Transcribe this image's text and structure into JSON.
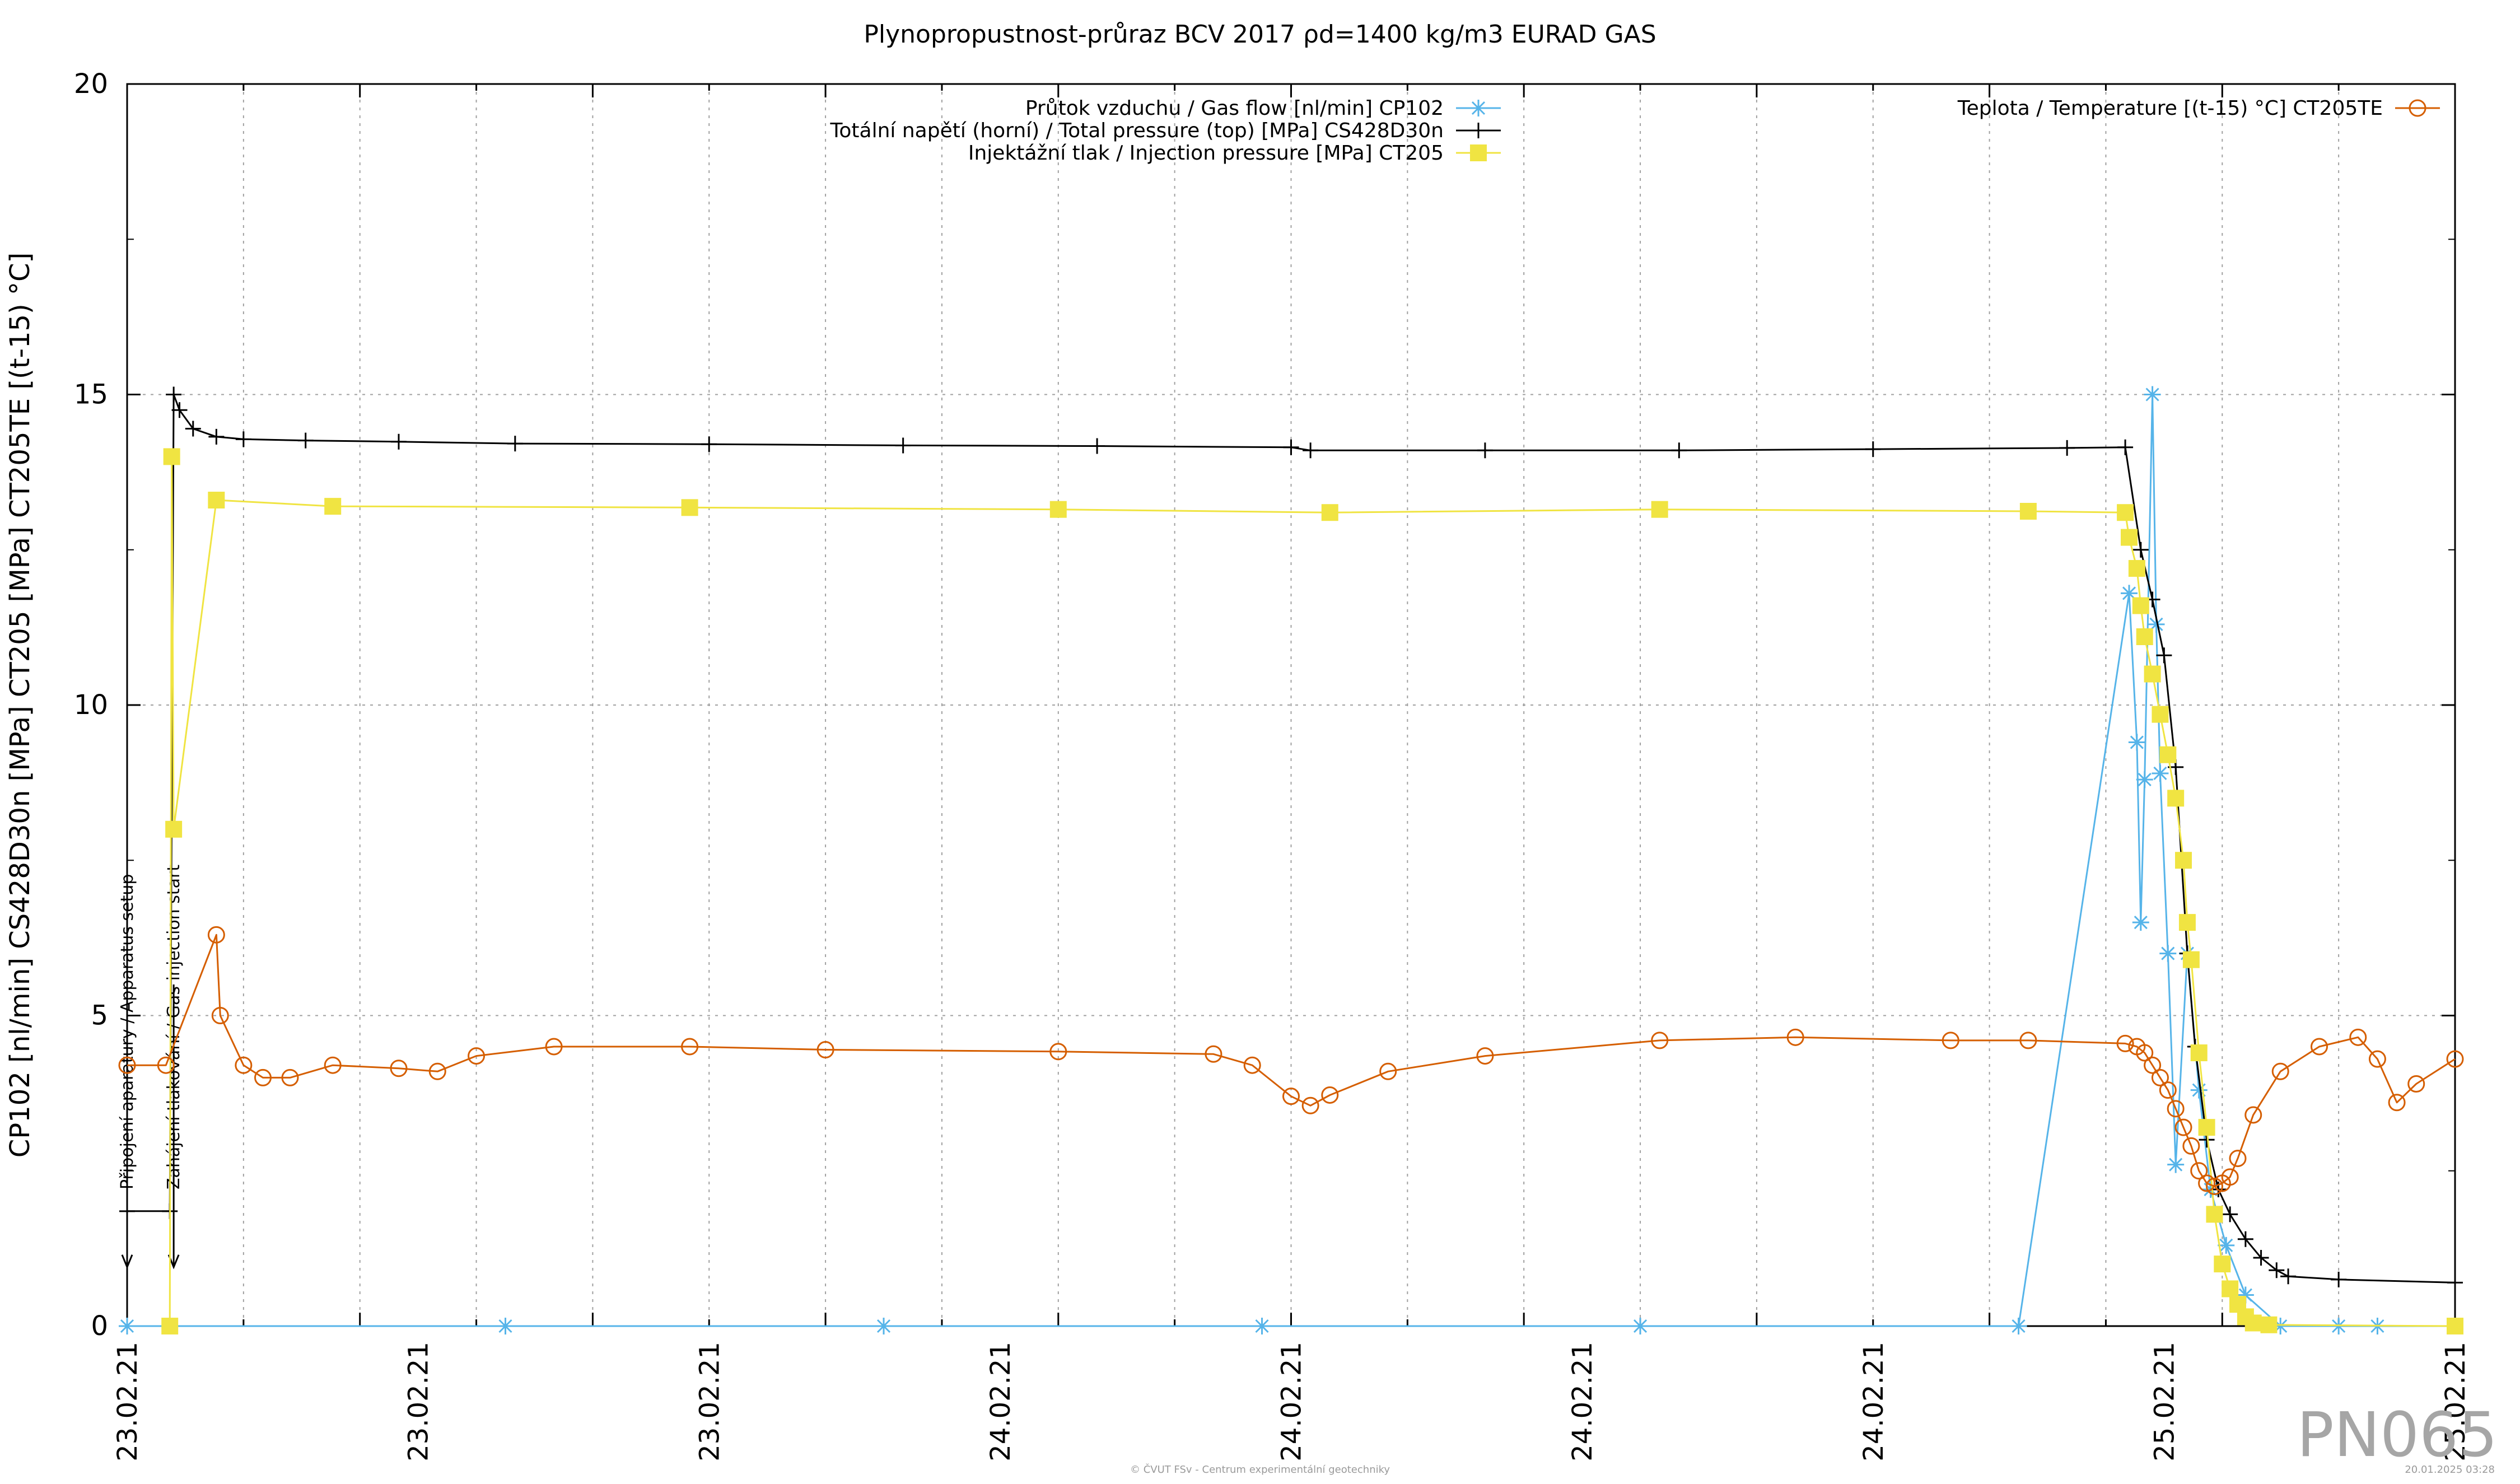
{
  "title": "Plynopropustnost-průraz BCV 2017 ρd=1400 kg/m3 EURAD GAS",
  "brand": "PN065",
  "footer_left": "© ČVUT FSv - Centrum experimentální geotechniky",
  "footer_right": "20.01.2025 03:28",
  "chart_data": {
    "type": "line",
    "title": "Plynopropustnost-průraz BCV 2017 ρd=1400 kg/m3 EURAD GAS",
    "ylabel": "CP102 [nl/min] CS428D30n [MPa] CT205 [MPa] CT205TE [(t-15) °C]",
    "xlabel": "",
    "ylim": [
      0,
      20
    ],
    "yticks": [
      0,
      5,
      10,
      15,
      20
    ],
    "x_ticklabels": [
      "23.02.21",
      "23.02.21",
      "23.02.21",
      "24.02.21",
      "24.02.21",
      "24.02.21",
      "24.02.21",
      "25.02.21",
      "25.02.21"
    ],
    "xlim_hours": [
      0,
      60
    ],
    "grid": true,
    "legend_position": "top",
    "annotations": [
      {
        "text": "Připojení aparatury / Apparatus setup",
        "x": 0.0
      },
      {
        "text": "Zahájení tlakování / Gas injection start",
        "x": 1.2
      }
    ],
    "series": [
      {
        "name": "Průtok vzduchu / Gas flow [nl/min] CP102",
        "color": "#56b4e9",
        "marker": "asterisk",
        "x": [
          0.0,
          9.75,
          19.5,
          29.25,
          39.0,
          48.75,
          51.6,
          51.8,
          51.9,
          52.0,
          52.2,
          52.3,
          52.4,
          52.6,
          52.8,
          53.1,
          53.4,
          53.7,
          54.1,
          54.6,
          55.5,
          57.0,
          58.0,
          60.0
        ],
        "y": [
          0,
          0,
          0,
          0,
          0,
          0,
          11.8,
          9.4,
          6.5,
          8.8,
          15.0,
          11.3,
          8.9,
          6.0,
          2.6,
          6.0,
          3.8,
          2.2,
          1.3,
          0.5,
          0,
          0,
          0,
          0
        ]
      },
      {
        "name": "Totální napětí (horní) / Total pressure (top) [MPa] CS428D30n",
        "color": "#000000",
        "marker": "plus",
        "x": [
          0.0,
          1.1,
          1.2,
          1.35,
          1.7,
          2.3,
          3.0,
          4.6,
          7.0,
          10.0,
          15.0,
          20.0,
          25.0,
          30.0,
          30.5,
          35.0,
          40.0,
          45.0,
          50.0,
          51.5,
          51.9,
          52.2,
          52.5,
          52.8,
          53.1,
          53.3,
          53.6,
          53.9,
          54.2,
          54.6,
          55.0,
          55.4,
          55.7,
          57.0,
          60.0
        ],
        "y": [
          1.85,
          1.85,
          15.0,
          14.75,
          14.45,
          14.32,
          14.28,
          14.26,
          14.24,
          14.21,
          14.2,
          14.18,
          14.17,
          14.15,
          14.1,
          14.1,
          14.1,
          14.12,
          14.14,
          14.15,
          12.5,
          11.7,
          10.8,
          9.0,
          6.0,
          4.5,
          3.0,
          2.2,
          1.8,
          1.4,
          1.1,
          0.9,
          0.8,
          0.75,
          0.7
        ]
      },
      {
        "name": "Injektážní tlak / Injection pressure [MPa] CT205",
        "color": "#f0e442",
        "marker": "square",
        "x": [
          1.1,
          1.15,
          1.2,
          2.3,
          5.3,
          14.5,
          24.0,
          31.0,
          39.5,
          49.0,
          51.5,
          51.6,
          51.8,
          51.9,
          52.0,
          52.2,
          52.4,
          52.6,
          52.8,
          53.0,
          53.1,
          53.2,
          53.4,
          53.6,
          53.8,
          54.0,
          54.2,
          54.4,
          54.6,
          54.8,
          55.2,
          60.0
        ],
        "y": [
          0,
          14.0,
          8.0,
          13.3,
          13.2,
          13.18,
          13.15,
          13.1,
          13.15,
          13.12,
          13.1,
          12.7,
          12.2,
          11.6,
          11.1,
          10.5,
          9.85,
          9.2,
          8.5,
          7.5,
          6.5,
          5.9,
          4.4,
          3.2,
          1.8,
          1.0,
          0.6,
          0.35,
          0.15,
          0.05,
          0.02,
          0.0
        ]
      },
      {
        "name": "Teplota / Temperature [(t-15) °C] CT205TE",
        "color": "#d55e00",
        "marker": "circle",
        "x": [
          0.0,
          1.0,
          2.3,
          2.4,
          3.0,
          3.5,
          4.2,
          5.3,
          7.0,
          8.0,
          9.0,
          11.0,
          14.5,
          18.0,
          24.0,
          28.0,
          29.0,
          30.0,
          30.5,
          31.0,
          32.5,
          35.0,
          39.5,
          43.0,
          47.0,
          49.0,
          51.5,
          51.8,
          52.0,
          52.2,
          52.4,
          52.6,
          52.8,
          53.0,
          53.2,
          53.4,
          53.6,
          53.8,
          54.0,
          54.2,
          54.4,
          54.8,
          55.5,
          56.5,
          57.5,
          58.0,
          58.5,
          59.0,
          60.0
        ],
        "y": [
          4.2,
          4.2,
          6.3,
          5.0,
          4.2,
          4.0,
          4.0,
          4.2,
          4.15,
          4.1,
          4.35,
          4.5,
          4.5,
          4.45,
          4.42,
          4.38,
          4.2,
          3.7,
          3.55,
          3.72,
          4.1,
          4.35,
          4.6,
          4.65,
          4.6,
          4.6,
          4.55,
          4.5,
          4.4,
          4.2,
          4.0,
          3.8,
          3.5,
          3.2,
          2.9,
          2.5,
          2.3,
          2.25,
          2.3,
          2.4,
          2.7,
          3.4,
          4.1,
          4.5,
          4.65,
          4.3,
          3.6,
          3.9,
          4.3
        ]
      }
    ]
  }
}
